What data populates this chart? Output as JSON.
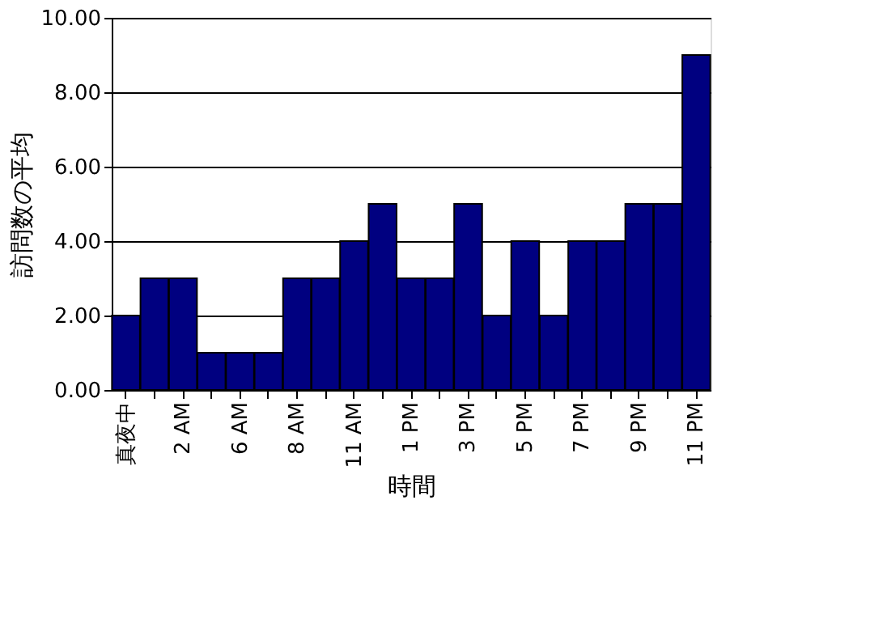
{
  "chart_data": {
    "type": "bar",
    "xlabel": "時間",
    "ylabel": "訪問数の平均",
    "categories": [
      "真夜中",
      null,
      "2 AM",
      null,
      "6 AM",
      null,
      "8 AM",
      null,
      "11 AM",
      null,
      "1 PM",
      null,
      "3 PM",
      null,
      "5 PM",
      null,
      "7 PM",
      null,
      "9 PM",
      null,
      "11 PM"
    ],
    "values": [
      2,
      3,
      3,
      1,
      1,
      1,
      3,
      3,
      4,
      5,
      3,
      3,
      5,
      2,
      4,
      2,
      4,
      4,
      5,
      5,
      9
    ],
    "color": "#000080",
    "ylim": [
      0,
      10
    ],
    "yticks": [
      {
        "value": 0,
        "label": "0.00"
      },
      {
        "value": 2,
        "label": "2.00"
      },
      {
        "value": 4,
        "label": "4.00"
      },
      {
        "value": 6,
        "label": "6.00"
      },
      {
        "value": 8,
        "label": "8.00"
      },
      {
        "value": 10,
        "label": "10.00"
      }
    ],
    "grid": "y"
  }
}
